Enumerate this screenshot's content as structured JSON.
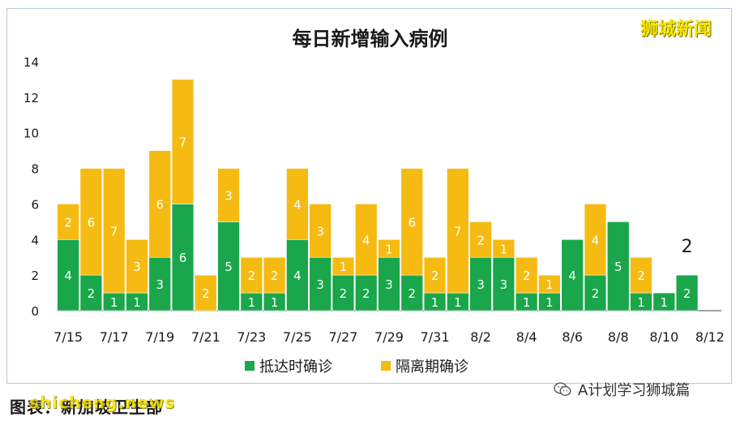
{
  "watermark_top": "狮城新闻",
  "footer_left": "图表：新加坡卫生部",
  "footer_left_watermark": "shicheng.news",
  "footer_right": "A计划学习狮城篇",
  "chart_data": {
    "type": "bar",
    "stacked": true,
    "title": "每日新增输入病例",
    "categories": [
      "7/15",
      "7/16",
      "7/17",
      "7/18",
      "7/19",
      "7/20",
      "7/21",
      "7/22",
      "7/23",
      "7/24",
      "7/25",
      "7/26",
      "7/27",
      "7/28",
      "7/29",
      "7/30",
      "7/31",
      "8/1",
      "8/2",
      "8/3",
      "8/4",
      "8/5",
      "8/6",
      "8/7",
      "8/8",
      "8/9",
      "8/10",
      "8/11",
      "8/12"
    ],
    "x_tick_labels": [
      "7/15",
      "7/17",
      "7/19",
      "7/21",
      "7/23",
      "7/25",
      "7/27",
      "7/29",
      "7/31",
      "8/2",
      "8/4",
      "8/6",
      "8/8",
      "8/10",
      "8/12"
    ],
    "series": [
      {
        "name": "抵达时确诊",
        "color": "#1aa64b",
        "values": [
          4,
          2,
          1,
          1,
          3,
          6,
          0,
          5,
          1,
          1,
          4,
          3,
          2,
          2,
          3,
          2,
          1,
          1,
          3,
          3,
          1,
          1,
          4,
          2,
          5,
          1,
          1,
          2,
          0
        ]
      },
      {
        "name": "隔离期确诊",
        "color": "#f5bb12",
        "values": [
          2,
          6,
          7,
          3,
          6,
          7,
          2,
          3,
          2,
          2,
          4,
          3,
          1,
          4,
          1,
          6,
          2,
          7,
          2,
          1,
          2,
          1,
          0,
          4,
          0,
          2,
          0,
          0,
          0
        ]
      }
    ],
    "annotation": {
      "category": "8/11",
      "text": "2"
    },
    "ylim": [
      0,
      14
    ],
    "yticks": [
      0,
      2,
      4,
      6,
      8,
      10,
      12,
      14
    ],
    "grid": false,
    "legend_position": "bottom"
  }
}
